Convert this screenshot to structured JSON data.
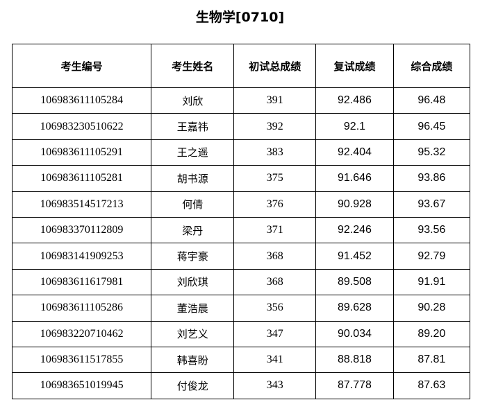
{
  "title": "生物学[0710]",
  "headers": [
    "考生编号",
    "考生姓名",
    "初试总成绩",
    "复试成绩",
    "综合成绩"
  ],
  "rows": [
    [
      "106983611105284",
      "刘欣",
      "391",
      "92.486",
      "96.48"
    ],
    [
      "106983230510622",
      "王嘉祎",
      "392",
      "92.1",
      "96.45"
    ],
    [
      "106983611105291",
      "王之遥",
      "383",
      "92.404",
      "95.32"
    ],
    [
      "106983611105281",
      "胡书源",
      "375",
      "91.646",
      "93.86"
    ],
    [
      "106983514517213",
      "何倩",
      "376",
      "90.928",
      "93.67"
    ],
    [
      "106983370112809",
      "梁丹",
      "371",
      "92.246",
      "93.56"
    ],
    [
      "106983141909253",
      "蒋宇豪",
      "368",
      "91.452",
      "92.79"
    ],
    [
      "106983611617981",
      "刘欣琪",
      "368",
      "89.508",
      "91.91"
    ],
    [
      "106983611105286",
      "董浩晨",
      "356",
      "89.628",
      "90.28"
    ],
    [
      "106983220710462",
      "刘艺义",
      "347",
      "90.034",
      "89.20"
    ],
    [
      "106983611517855",
      "韩喜盼",
      "341",
      "88.818",
      "87.81"
    ],
    [
      "106983651019945",
      "付俊龙",
      "343",
      "87.778",
      "87.63"
    ]
  ]
}
